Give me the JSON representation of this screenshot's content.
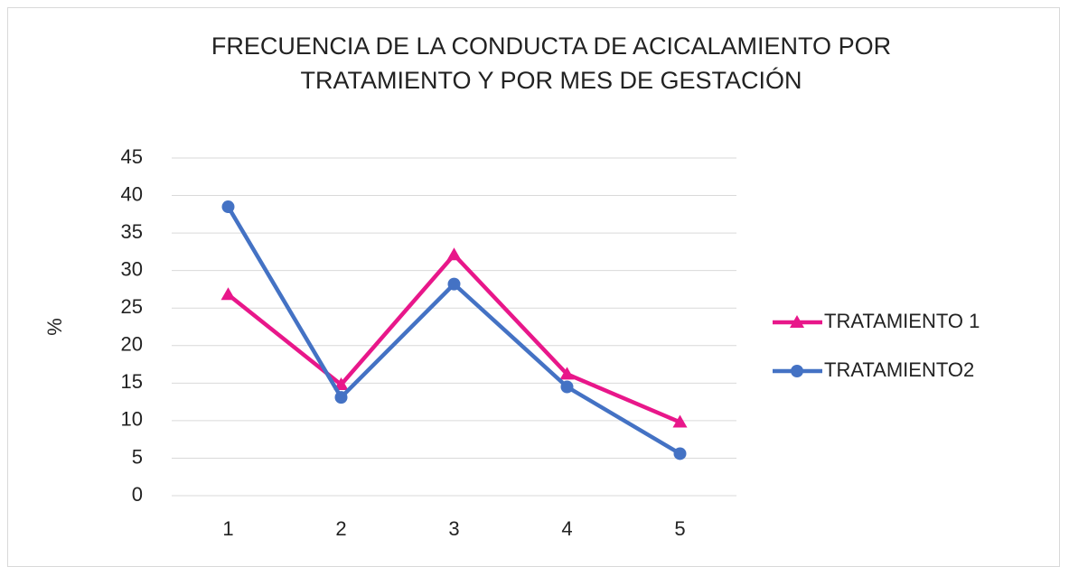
{
  "chart_data": {
    "type": "line",
    "title": "FRECUENCIA DE LA CONDUCTA DE ACICALAMIENTO POR TRATAMIENTO Y POR MES DE GESTACIÓN",
    "y_label": "%",
    "categories": [
      "1",
      "2",
      "3",
      "4",
      "5"
    ],
    "series": [
      {
        "name": "TRATAMIENTO 1",
        "color": "#e8178a",
        "marker": "triangle",
        "values": [
          26.8,
          14.8,
          32.1,
          16.2,
          9.8
        ]
      },
      {
        "name": "TRATAMIENTO2",
        "color": "#4472c4",
        "marker": "circle",
        "values": [
          38.5,
          13.1,
          28.2,
          14.5,
          5.6
        ]
      }
    ],
    "ylim": [
      0,
      45
    ],
    "yticks": [
      0,
      5,
      10,
      15,
      20,
      25,
      30,
      35,
      40,
      45
    ],
    "grid": true,
    "legend": "right"
  }
}
